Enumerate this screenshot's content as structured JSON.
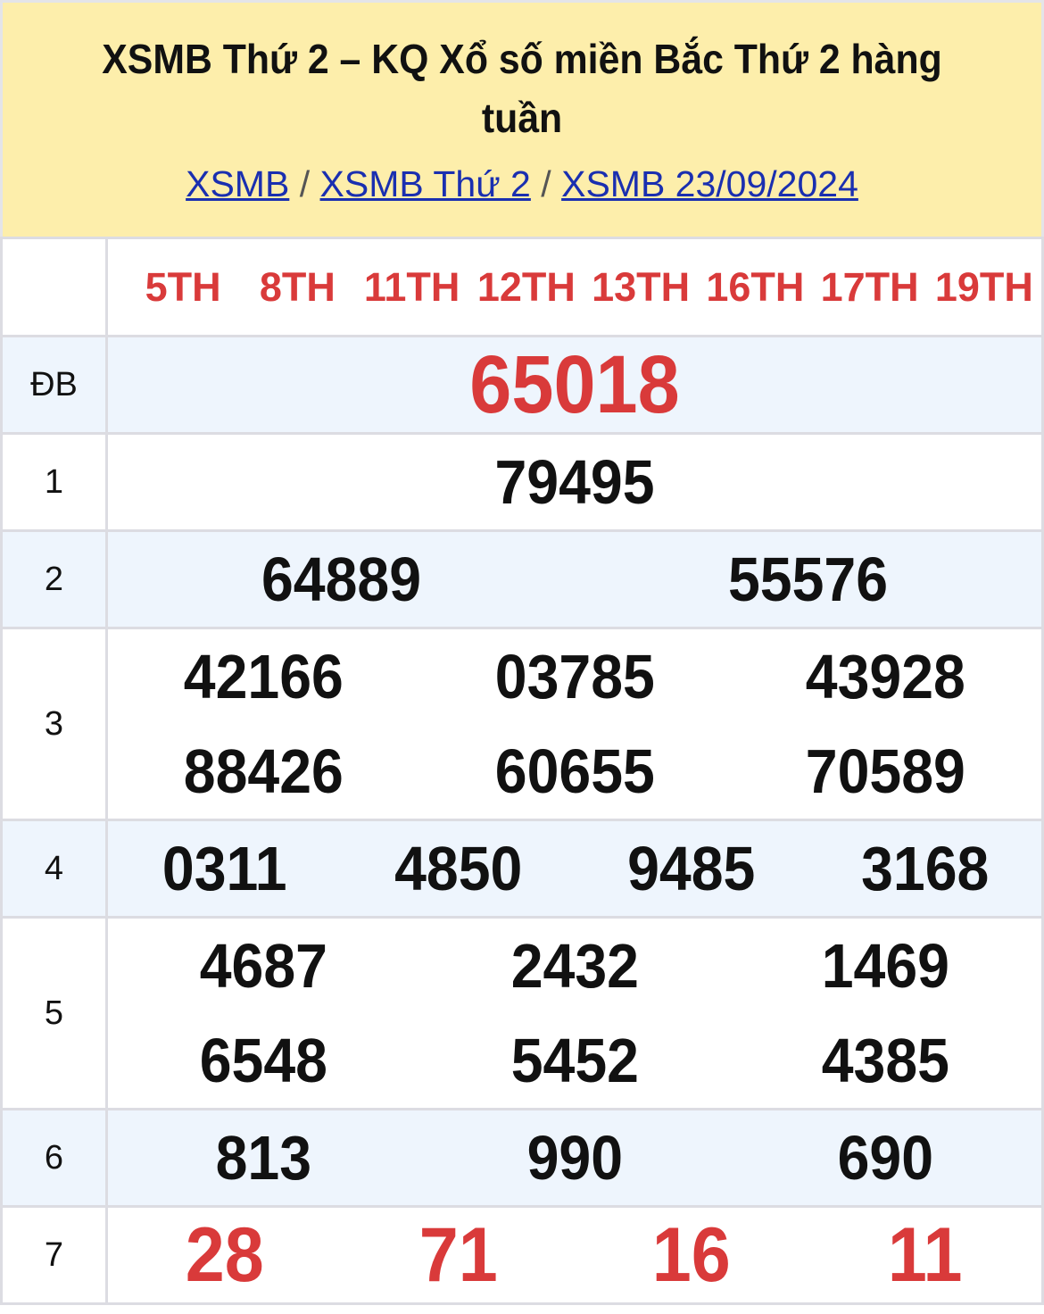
{
  "header": {
    "title": "XSMB Thứ 2 – KQ Xổ số miền Bắc Thứ 2 hàng tuần",
    "breadcrumb": [
      {
        "label": "XSMB"
      },
      {
        "label": "XSMB Thứ 2"
      },
      {
        "label": "XSMB 23/09/2024"
      }
    ],
    "separator": "/"
  },
  "columns": [
    "5TH",
    "8TH",
    "11TH",
    "12TH",
    "13TH",
    "16TH",
    "17TH",
    "19TH"
  ],
  "prizes": [
    {
      "label": "ĐB",
      "numbers": [
        "65018"
      ]
    },
    {
      "label": "1",
      "numbers": [
        "79495"
      ]
    },
    {
      "label": "2",
      "numbers": [
        "64889",
        "55576"
      ]
    },
    {
      "label": "3",
      "numbers": [
        "42166",
        "03785",
        "43928",
        "88426",
        "60655",
        "70589"
      ]
    },
    {
      "label": "4",
      "numbers": [
        "0311",
        "4850",
        "9485",
        "3168"
      ]
    },
    {
      "label": "5",
      "numbers": [
        "4687",
        "2432",
        "1469",
        "6548",
        "5452",
        "4385"
      ]
    },
    {
      "label": "6",
      "numbers": [
        "813",
        "990",
        "690"
      ]
    },
    {
      "label": "7",
      "numbers": [
        "28",
        "71",
        "16",
        "11"
      ]
    }
  ],
  "colors": {
    "header_bg": "#fdeeab",
    "highlight": "#d93a3a",
    "link": "#1a2fb0",
    "alt_row": "#eef5fd"
  }
}
